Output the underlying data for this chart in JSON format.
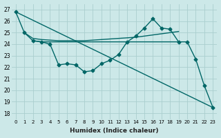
{
  "xlabel": "Humidex (Indice chaleur)",
  "xlim": [
    -0.5,
    23.5
  ],
  "ylim": [
    17.5,
    27.5
  ],
  "yticks": [
    18,
    19,
    20,
    21,
    22,
    23,
    24,
    25,
    26,
    27
  ],
  "xticks": [
    0,
    1,
    2,
    3,
    4,
    5,
    6,
    7,
    8,
    9,
    10,
    11,
    12,
    13,
    14,
    15,
    16,
    17,
    18,
    19,
    20,
    21,
    22,
    23
  ],
  "bg_color": "#cce8e8",
  "grid_color": "#aacece",
  "line_color": "#006666",
  "curve_with_markers": {
    "x": [
      0,
      1,
      2,
      3,
      4,
      5,
      6,
      7,
      8,
      9,
      10,
      11,
      12,
      13,
      14,
      15,
      16,
      17,
      18,
      19,
      20,
      21,
      22,
      23
    ],
    "y": [
      26.8,
      25.0,
      24.3,
      24.2,
      24.0,
      22.2,
      22.3,
      22.2,
      21.6,
      21.7,
      22.3,
      22.6,
      23.1,
      24.2,
      24.7,
      25.4,
      26.2,
      25.4,
      25.3,
      24.2,
      24.2,
      22.7,
      20.4,
      18.5
    ]
  },
  "straight_diagonal": {
    "x": [
      0,
      23
    ],
    "y": [
      26.8,
      18.5
    ]
  },
  "flat_line": {
    "x": [
      2,
      3,
      4,
      5,
      6,
      7,
      8,
      9,
      10,
      11,
      12,
      13,
      14,
      15,
      16,
      17,
      18,
      19
    ],
    "y": [
      24.3,
      24.2,
      24.2,
      24.2,
      24.2,
      24.2,
      24.2,
      24.2,
      24.2,
      24.2,
      24.2,
      24.2,
      24.2,
      24.2,
      24.2,
      24.2,
      24.2,
      24.2
    ]
  },
  "upper_rising_line": {
    "x": [
      1,
      2,
      3,
      4,
      5,
      6,
      7,
      8,
      9,
      10,
      11,
      12,
      13,
      14,
      15,
      16,
      17,
      18,
      19
    ],
    "y": [
      25.0,
      24.5,
      24.4,
      24.35,
      24.3,
      24.3,
      24.3,
      24.3,
      24.35,
      24.4,
      24.45,
      24.5,
      24.55,
      24.6,
      24.7,
      24.8,
      24.9,
      25.0,
      25.1
    ]
  }
}
